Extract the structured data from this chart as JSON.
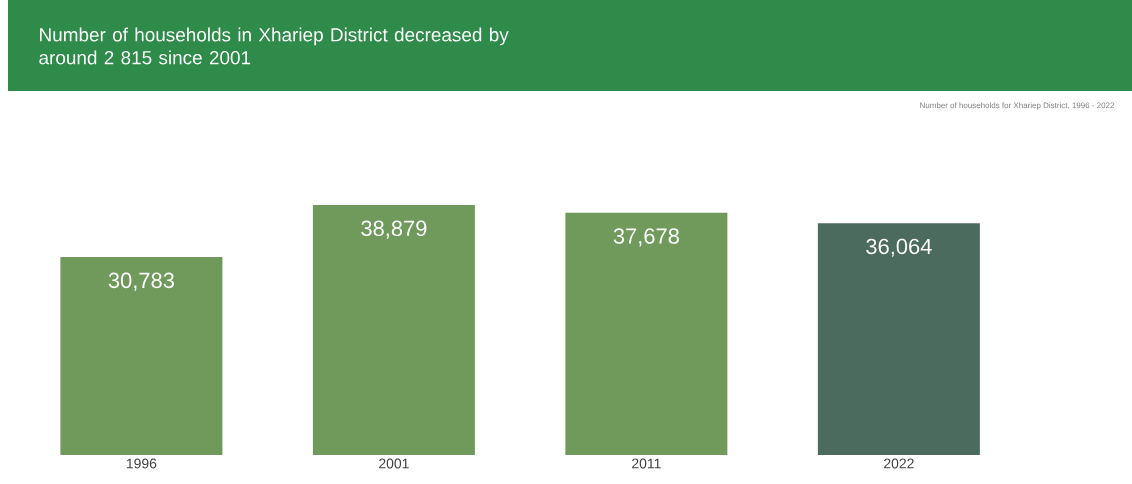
{
  "chart_data": {
    "type": "bar",
    "title": "Number of households in Xhariep District decreased by around 2 815 since 2001",
    "subtitle": "Number of households for Xhariep District, 1996 - 2022",
    "categories": [
      "1996",
      "2001",
      "2011",
      "2022"
    ],
    "values": [
      30783,
      38879,
      37678,
      36064
    ],
    "value_labels": [
      "30,783",
      "38,879",
      "37,678",
      "36,064"
    ],
    "colors": [
      "#6f9a5c",
      "#6f9a5c",
      "#6f9a5c",
      "#4b6b5f"
    ]
  }
}
